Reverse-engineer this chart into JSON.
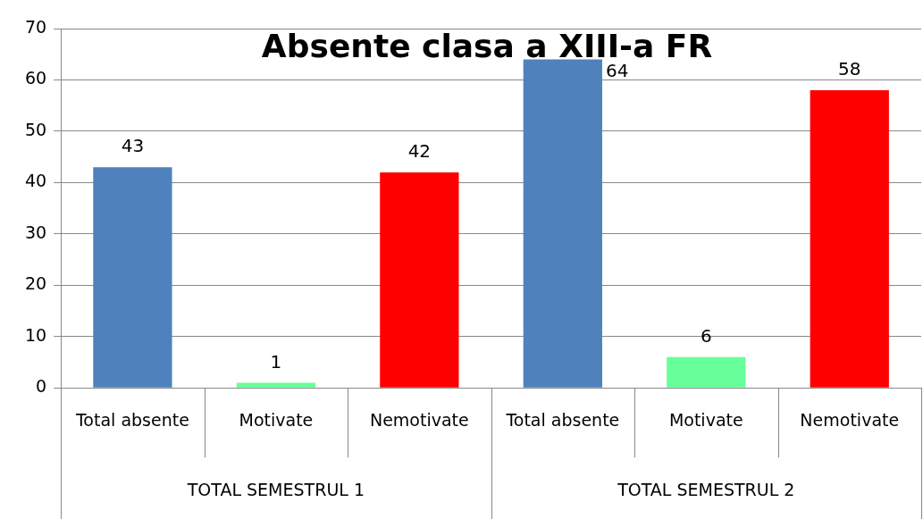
{
  "chart_data": {
    "type": "bar",
    "title": "Absente clasa a XIII-a FR",
    "categories": [
      "Total absente",
      "Motivate",
      "Nemotivate",
      "Total absente",
      "Motivate",
      "Nemotivate"
    ],
    "values": [
      43,
      1,
      42,
      64,
      6,
      58
    ],
    "colors": [
      "#4f81bd",
      "#66ff99",
      "#ff0000",
      "#4f81bd",
      "#66ff99",
      "#ff0000"
    ],
    "ylim": [
      0,
      70
    ],
    "yticks": [
      0,
      10,
      20,
      30,
      40,
      50,
      60,
      70
    ],
    "grid": "y",
    "legend": false,
    "data_labels": true,
    "annotations": [
      "TOTAL SEMESTRUL 1",
      "TOTAL SEMESTRUL 2"
    ]
  }
}
